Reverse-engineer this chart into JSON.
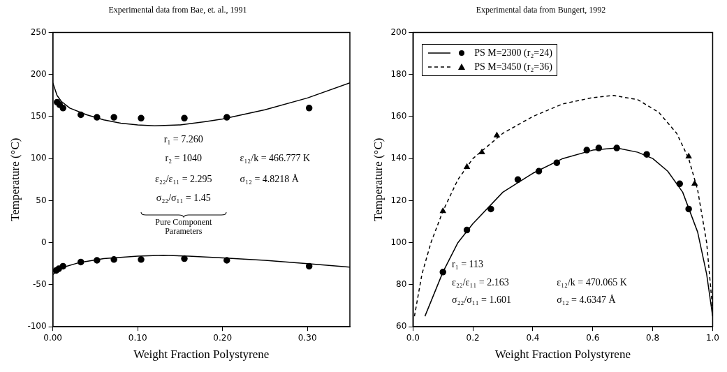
{
  "chart_data": [
    {
      "type": "scatter",
      "title": "Experimental data from Bae, et. al., 1991",
      "xlabel": "Weight Fraction Polystyrene",
      "ylabel": "Temperature (°C)",
      "xlim": [
        0,
        0.35
      ],
      "xticks": [
        {
          "value": 0,
          "label": "0.00"
        },
        {
          "value": 0.1,
          "label": "0.10"
        },
        {
          "value": 0.2,
          "label": "0.20"
        },
        {
          "value": 0.3,
          "label": "0.30"
        }
      ],
      "ylim": [
        -100,
        250
      ],
      "yticks": [
        -100,
        -50,
        0,
        50,
        100,
        150,
        200,
        250
      ],
      "grid": false,
      "series": [
        {
          "color": "#000000",
          "marker": "circle",
          "x": [
            0.005,
            0.008,
            0.012,
            0.033,
            0.052,
            0.072,
            0.104,
            0.155,
            0.205,
            0.302
          ],
          "values": [
            167,
            164,
            160,
            152,
            149,
            149,
            148,
            148,
            149,
            160
          ]
        },
        {
          "type": "line",
          "color": "#000000",
          "marker": "none",
          "line_style": "solid",
          "x": [
            0,
            0.005,
            0.01,
            0.02,
            0.04,
            0.06,
            0.08,
            0.1,
            0.12,
            0.15,
            0.18,
            0.2,
            0.25,
            0.3,
            0.35
          ],
          "values": [
            190,
            175,
            168,
            160,
            152,
            146,
            142,
            140,
            139,
            140,
            144,
            147,
            158,
            172,
            190
          ]
        },
        {
          "color": "#000000",
          "marker": "circle",
          "x": [
            0.004,
            0.007,
            0.012,
            0.033,
            0.052,
            0.072,
            0.104,
            0.155,
            0.205,
            0.302
          ],
          "values": [
            -33,
            -31,
            -28,
            -23,
            -21,
            -20,
            -20,
            -19,
            -21,
            -28
          ]
        },
        {
          "type": "line",
          "color": "#000000",
          "marker": "none",
          "line_style": "solid",
          "x": [
            0,
            0.01,
            0.03,
            0.06,
            0.1,
            0.13,
            0.16,
            0.2,
            0.25,
            0.3,
            0.35
          ],
          "values": [
            -38,
            -30,
            -24,
            -19,
            -16,
            -15,
            -16,
            -18,
            -21,
            -25,
            -29
          ]
        }
      ],
      "annotations": [
        "r₁ = 7.260",
        "r₂ = 1040",
        "ε₂₂/ε₁₁ = 2.295",
        "σ₂₂/σ₁₁ = 1.45",
        "Pure Component Parameters",
        "ε₁₂/k = 466.777 K",
        "σ₁₂ = 4.8218 Å"
      ]
    },
    {
      "type": "scatter",
      "title": "Experimental data from Bungert, 1992",
      "xlabel": "Weight Fraction Polystyrene",
      "ylabel": "Temperature (°C)",
      "xlim": [
        0,
        1
      ],
      "xticks": [
        {
          "value": 0,
          "label": "0.0"
        },
        {
          "value": 0.2,
          "label": "0.2"
        },
        {
          "value": 0.4,
          "label": "0.4"
        },
        {
          "value": 0.6,
          "label": "0.6"
        },
        {
          "value": 0.8,
          "label": "0.8"
        },
        {
          "value": 1,
          "label": "1.0"
        }
      ],
      "ylim": [
        60,
        200
      ],
      "yticks": [
        60,
        80,
        100,
        120,
        140,
        160,
        180,
        200
      ],
      "grid": false,
      "legend": "top left",
      "series": [
        {
          "name": "PS M=2300 (r₂=24)",
          "color": "#000000",
          "marker": "circle",
          "x": [
            0.1,
            0.18,
            0.26,
            0.35,
            0.42,
            0.48,
            0.58,
            0.62,
            0.68,
            0.78,
            0.89,
            0.92
          ],
          "values": [
            86,
            106,
            116,
            130,
            134,
            138,
            144,
            145,
            145,
            142,
            128,
            116
          ]
        },
        {
          "type": "line",
          "color": "#000000",
          "marker": "none",
          "line_style": "solid",
          "x": [
            0.04,
            0.1,
            0.15,
            0.2,
            0.3,
            0.4,
            0.5,
            0.6,
            0.68,
            0.75,
            0.8,
            0.85,
            0.9,
            0.95,
            0.98,
            1
          ],
          "values": [
            65,
            86,
            100,
            109,
            124,
            133,
            140,
            144,
            145,
            143,
            140,
            134,
            124,
            105,
            85,
            65
          ]
        },
        {
          "name": "PS M=3450 (r₂=36)",
          "color": "#000000",
          "marker": "triangle",
          "x": [
            0.1,
            0.18,
            0.23,
            0.28,
            0.92,
            0.94
          ],
          "values": [
            115,
            136,
            143,
            151,
            141,
            128
          ]
        },
        {
          "type": "line",
          "color": "#000000",
          "marker": "none",
          "line_style": "dashed",
          "x": [
            0.005,
            0.03,
            0.06,
            0.1,
            0.15,
            0.2,
            0.3,
            0.4,
            0.5,
            0.6,
            0.67,
            0.75,
            0.82,
            0.88,
            0.92,
            0.95,
            0.98,
            1
          ],
          "values": [
            65,
            85,
            100,
            115,
            130,
            140,
            152,
            160,
            166,
            169,
            170,
            168,
            162,
            152,
            140,
            125,
            100,
            68
          ]
        }
      ],
      "annotations": [
        "r₁ = 113",
        "ε₂₂/ε₁₁ = 2.163",
        "σ₂₂/σ₁₁ = 1.601",
        "ε₁₂/k = 470.065 K",
        "σ₁₂ = 4.6347 Å"
      ]
    }
  ]
}
